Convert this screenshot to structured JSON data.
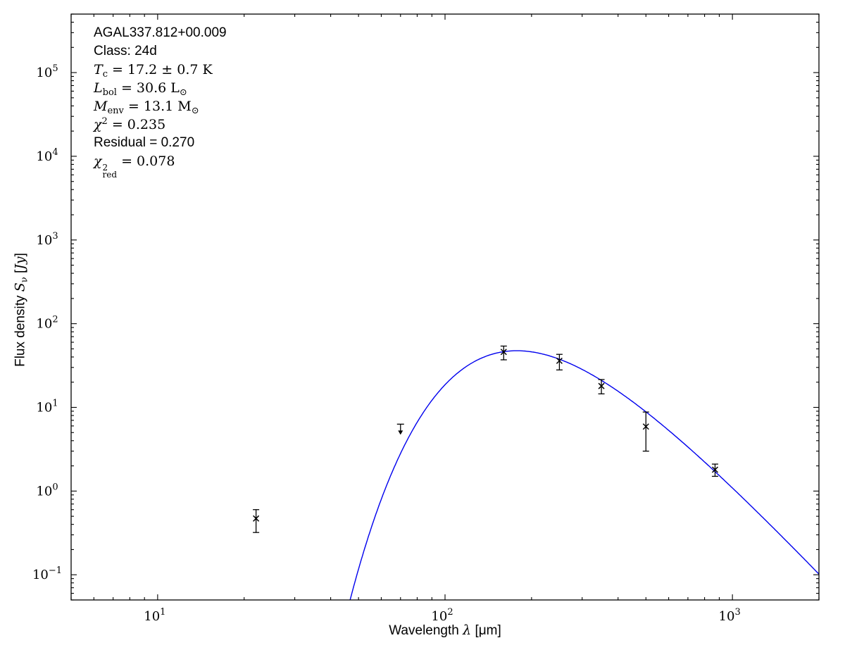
{
  "figure": {
    "background": "#ffffff",
    "frame_color": "#000000",
    "curve_color": "#0000ee",
    "marker_color": "#000000"
  },
  "annotation": {
    "source_name": "AGAL337.812+00.009",
    "class_line": "Class: 24d",
    "tc": {
      "sym": "T",
      "sub": "c",
      "rest": " = 17.2 ± 0.7 K"
    },
    "lbol": {
      "sym": "L",
      "sub": "bol",
      "rest": " = 30.6 L",
      "unit_sub": "⊙"
    },
    "menv": {
      "sym": "M",
      "sub": "env",
      "rest": " = 13.1 M",
      "unit_sub": "⊙"
    },
    "chi2": {
      "sym": "χ",
      "sup": "2",
      "rest": " = 0.235"
    },
    "residual": "Residual = 0.270",
    "chi2red": {
      "sym": "χ",
      "sup": "2",
      "sub": "red",
      "rest": " = 0.078"
    }
  },
  "x_axis": {
    "label_pre": "Wavelength ",
    "label_sym": "λ",
    "label_post": " [μm]",
    "tick_exponents": [
      1,
      2,
      3
    ]
  },
  "y_axis": {
    "label_pre": "Flux density ",
    "label_sym": "S",
    "label_sub": "ν",
    "label_open": " [",
    "label_unit": "Jy",
    "label_close": "]",
    "tick_exponents": [
      5,
      4,
      3,
      2,
      1,
      0,
      -1
    ]
  },
  "chart_data": {
    "type": "scatter",
    "title": "",
    "xlabel": "Wavelength λ [μm]",
    "ylabel": "Flux density Sν [Jy]",
    "xscale": "log",
    "yscale": "log",
    "xlim": [
      5,
      2000
    ],
    "ylim": [
      0.05,
      500000
    ],
    "grid": false,
    "legend": false,
    "points": [
      {
        "wavelength_um": 22,
        "flux_jy": 0.47,
        "err_plus": 0.13,
        "err_minus": 0.15,
        "upper_limit": false
      },
      {
        "wavelength_um": 70,
        "flux_jy": 6.3,
        "err_plus": 0,
        "err_minus": 0,
        "upper_limit": true
      },
      {
        "wavelength_um": 160,
        "flux_jy": 46,
        "err_plus": 8,
        "err_minus": 9,
        "upper_limit": false
      },
      {
        "wavelength_um": 250,
        "flux_jy": 36,
        "err_plus": 7,
        "err_minus": 8,
        "upper_limit": false
      },
      {
        "wavelength_um": 350,
        "flux_jy": 18,
        "err_plus": 3.5,
        "err_minus": 3.5,
        "upper_limit": false
      },
      {
        "wavelength_um": 500,
        "flux_jy": 5.9,
        "err_plus": 2.9,
        "err_minus": 2.9,
        "upper_limit": false
      },
      {
        "wavelength_um": 870,
        "flux_jy": 1.8,
        "err_plus": 0.3,
        "err_minus": 0.3,
        "upper_limit": false
      }
    ],
    "model_curve": {
      "type": "greybody",
      "T_K": 17.2,
      "beta": 1.75,
      "peak_flux_jy": 47.5,
      "peak_wavelength_um": 178,
      "lambda_min_um": 40,
      "lambda_max_um": 2000
    }
  }
}
